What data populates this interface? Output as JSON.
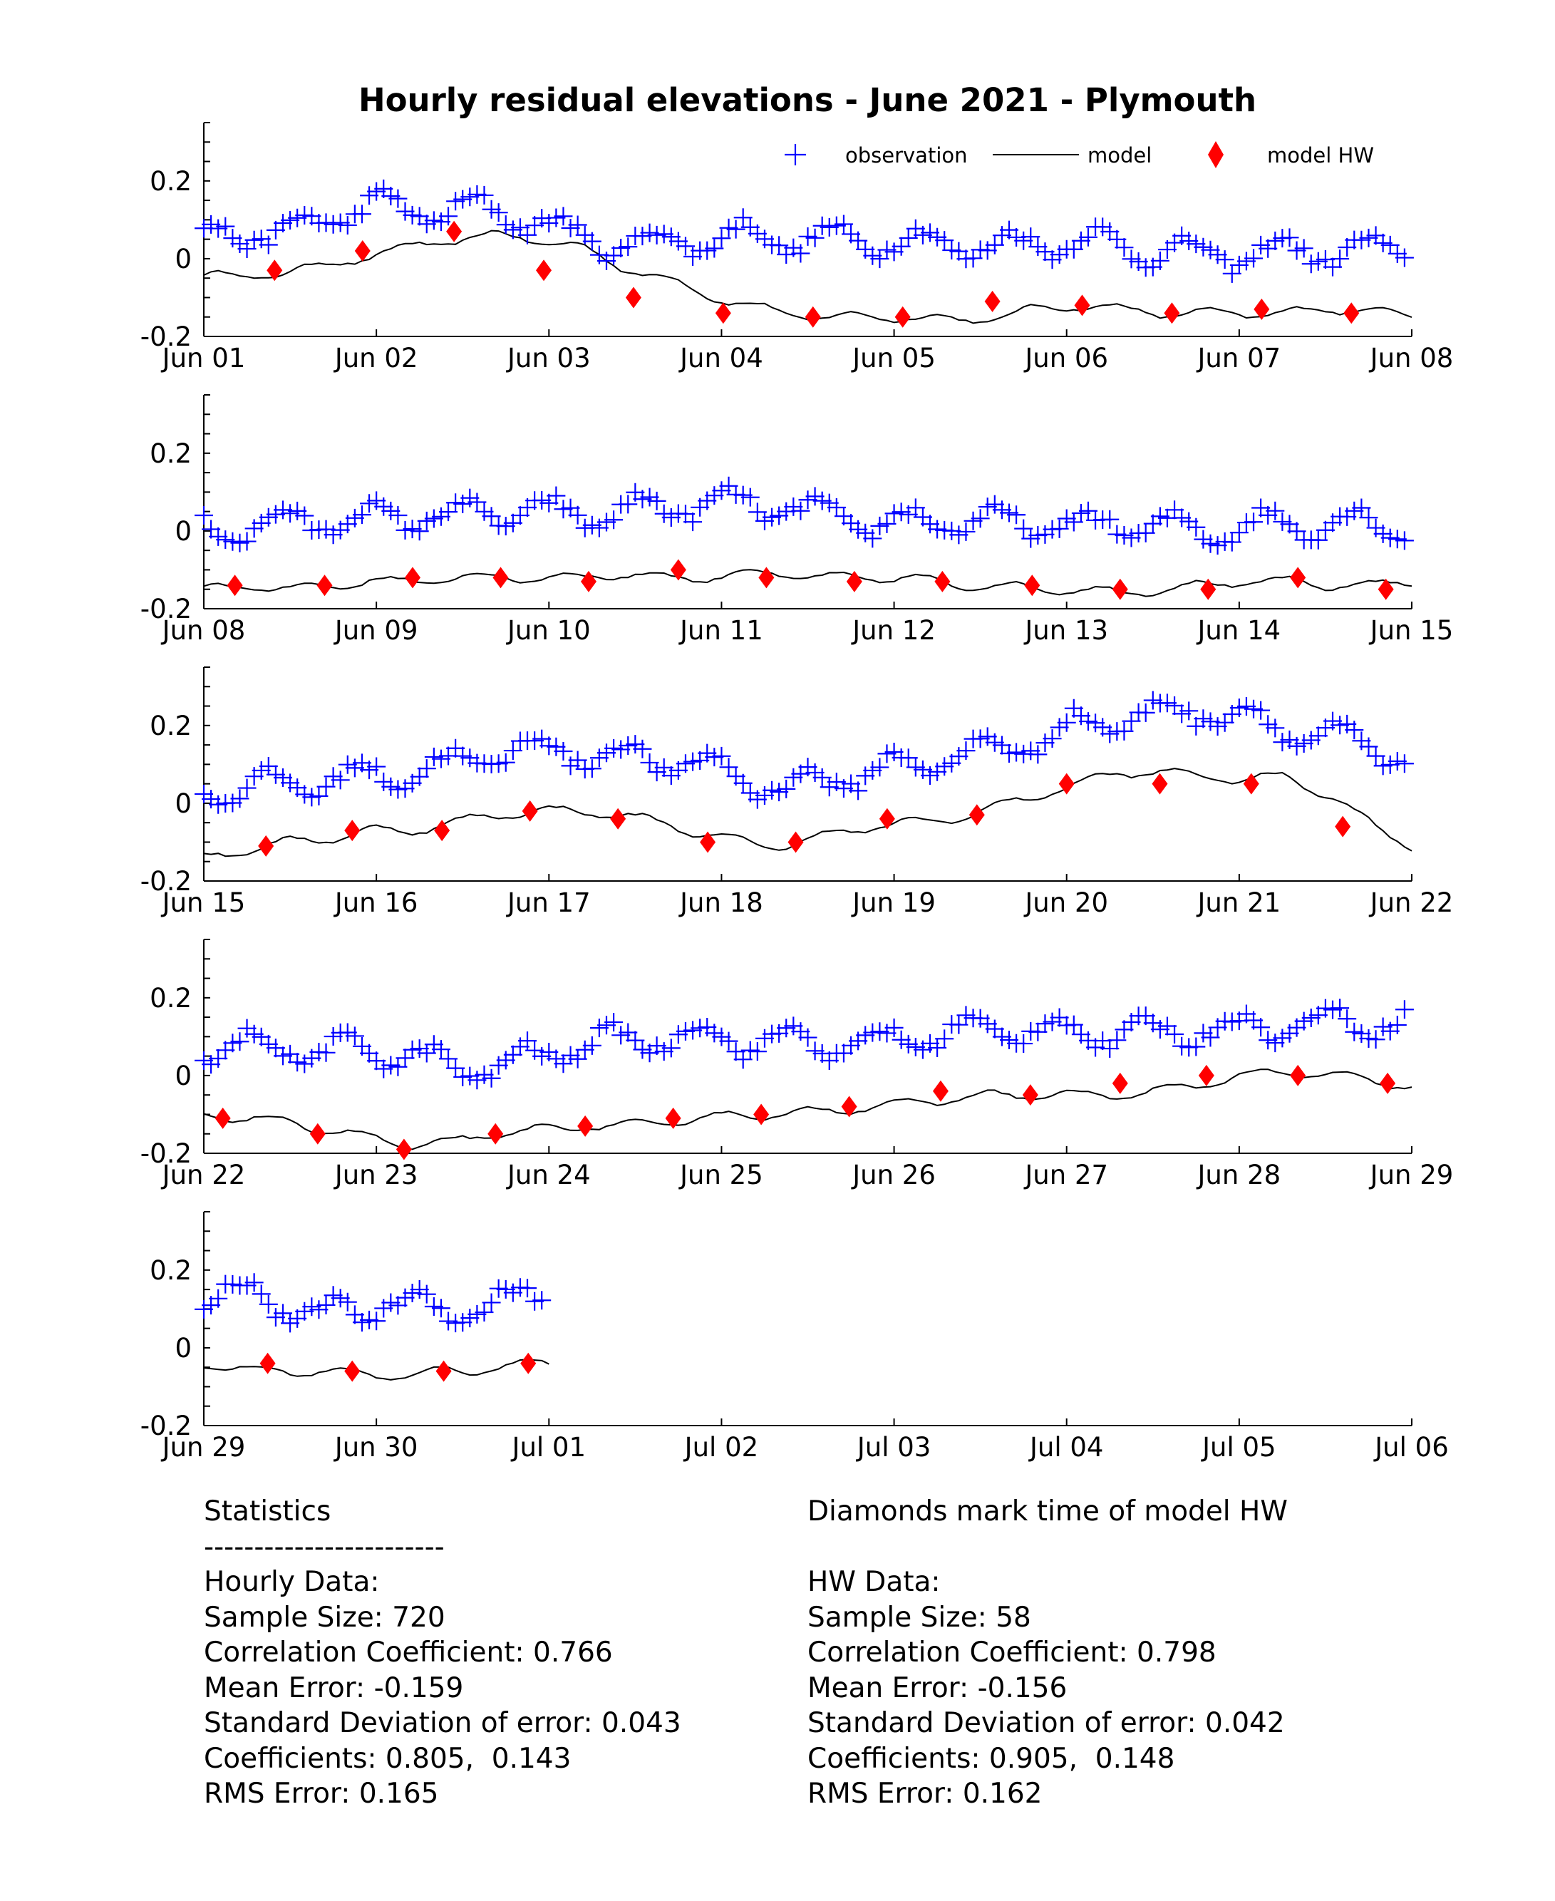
{
  "chart_data": {
    "type": "line",
    "title": "Hourly residual elevations - June  2021 - Plymouth",
    "ylabel": "",
    "xlabel": "",
    "ylim": [
      -0.2,
      0.35
    ],
    "yticks": [
      "0.2",
      "0",
      "-0.2"
    ],
    "grid": false,
    "legend_position": "top-right",
    "legend": [
      {
        "label": "observation",
        "marker": "plus",
        "color": "#0000ff"
      },
      {
        "label": "model",
        "marker": "line",
        "color": "#000000"
      },
      {
        "label": "model HW",
        "marker": "diamond",
        "color": "#ff0000"
      }
    ],
    "panels": [
      {
        "x_ticks": [
          "Jun 01",
          "Jun 02",
          "Jun 03",
          "Jun 04",
          "Jun 05",
          "Jun 06",
          "Jun 07",
          "Jun 08"
        ],
        "observation_base": [
          0.05,
          0.07,
          0.06,
          0.11,
          0.14,
          0.12,
          0.13,
          0.12,
          0.1,
          0.05,
          0.04,
          0.04,
          0.05,
          0.06,
          0.05,
          0.05,
          0.05,
          0.04,
          0.04,
          0.03,
          0.04,
          0.05,
          0.03,
          0.02,
          0.01,
          0.01,
          0.02,
          0.02,
          0.02,
          0.02
        ],
        "model_base": [
          -0.04,
          -0.05,
          -0.03,
          -0.02,
          0.01,
          0.03,
          0.05,
          0.06,
          0.05,
          0.03,
          -0.02,
          -0.05,
          -0.09,
          -0.12,
          -0.14,
          -0.15,
          -0.15,
          -0.15,
          -0.16,
          -0.15,
          -0.13,
          -0.12,
          -0.13,
          -0.14,
          -0.14,
          -0.14,
          -0.14,
          -0.13,
          -0.13,
          -0.15
        ],
        "hw": [
          [
            0.41,
            -0.03
          ],
          [
            0.92,
            0.02
          ],
          [
            1.45,
            0.07
          ],
          [
            1.97,
            -0.03
          ],
          [
            2.49,
            -0.1
          ],
          [
            3.01,
            -0.14
          ],
          [
            3.53,
            -0.15
          ],
          [
            4.05,
            -0.15
          ],
          [
            4.57,
            -0.11
          ],
          [
            5.09,
            -0.12
          ],
          [
            5.61,
            -0.14
          ],
          [
            6.13,
            -0.13
          ],
          [
            6.65,
            -0.14
          ]
        ]
      },
      {
        "x_ticks": [
          "Jun 08",
          "Jun 09",
          "Jun 10",
          "Jun 11",
          "Jun 12",
          "Jun 13",
          "Jun 14",
          "Jun 15"
        ],
        "observation_base": [
          0.0,
          0.01,
          0.02,
          0.03,
          0.03,
          0.04,
          0.04,
          0.05,
          0.05,
          0.04,
          0.05,
          0.06,
          0.07,
          0.07,
          0.06,
          0.04,
          0.02,
          0.02,
          0.03,
          0.02,
          0.02,
          0.01,
          0.02,
          0.01,
          0.0,
          0.01,
          0.02,
          0.02,
          0.02,
          0.01
        ],
        "model_base": [
          -0.15,
          -0.14,
          -0.15,
          -0.14,
          -0.13,
          -0.13,
          -0.12,
          -0.12,
          -0.12,
          -0.12,
          -0.11,
          -0.12,
          -0.12,
          -0.11,
          -0.11,
          -0.12,
          -0.12,
          -0.12,
          -0.14,
          -0.14,
          -0.15,
          -0.15,
          -0.16,
          -0.15,
          -0.14,
          -0.13,
          -0.13,
          -0.14,
          -0.14,
          -0.13
        ],
        "hw": [
          [
            0.18,
            -0.14
          ],
          [
            0.7,
            -0.14
          ],
          [
            1.21,
            -0.12
          ],
          [
            1.72,
            -0.12
          ],
          [
            2.23,
            -0.13
          ],
          [
            2.75,
            -0.1
          ],
          [
            3.26,
            -0.12
          ],
          [
            3.77,
            -0.13
          ],
          [
            4.28,
            -0.13
          ],
          [
            4.8,
            -0.14
          ],
          [
            5.31,
            -0.15
          ],
          [
            5.82,
            -0.15
          ],
          [
            6.34,
            -0.12
          ],
          [
            6.85,
            -0.15
          ]
        ]
      },
      {
        "x_ticks": [
          "Jun 15",
          "Jun 16",
          "Jun 17",
          "Jun 18",
          "Jun 19",
          "Jun 20",
          "Jun 21",
          "Jun 22"
        ],
        "observation_base": [
          0.03,
          0.04,
          0.05,
          0.06,
          0.07,
          0.08,
          0.1,
          0.13,
          0.14,
          0.13,
          0.12,
          0.11,
          0.1,
          0.06,
          0.04,
          0.06,
          0.08,
          0.1,
          0.12,
          0.14,
          0.16,
          0.2,
          0.22,
          0.23,
          0.24,
          0.22,
          0.19,
          0.17,
          0.15,
          0.1
        ],
        "model_base": [
          -0.14,
          -0.12,
          -0.1,
          -0.09,
          -0.07,
          -0.07,
          -0.05,
          -0.03,
          -0.02,
          -0.02,
          -0.03,
          -0.05,
          -0.08,
          -0.1,
          -0.11,
          -0.08,
          -0.06,
          -0.05,
          -0.04,
          -0.01,
          0.02,
          0.05,
          0.08,
          0.08,
          0.07,
          0.06,
          0.07,
          0.02,
          -0.05,
          -0.11
        ],
        "hw": [
          [
            0.36,
            -0.11
          ],
          [
            0.86,
            -0.07
          ],
          [
            1.38,
            -0.07
          ],
          [
            1.89,
            -0.02
          ],
          [
            2.4,
            -0.04
          ],
          [
            2.92,
            -0.1
          ],
          [
            3.43,
            -0.1
          ],
          [
            3.96,
            -0.04
          ],
          [
            4.48,
            -0.03
          ],
          [
            5.0,
            0.05
          ],
          [
            5.54,
            0.05
          ],
          [
            6.07,
            0.05
          ],
          [
            6.6,
            -0.06
          ]
        ]
      },
      {
        "x_ticks": [
          "Jun 22",
          "Jun 23",
          "Jun 24",
          "Jun 25",
          "Jun 26",
          "Jun 27",
          "Jun 28",
          "Jun 29"
        ],
        "observation_base": [
          0.06,
          0.08,
          0.07,
          0.06,
          0.07,
          0.05,
          0.02,
          0.02,
          0.05,
          0.08,
          0.09,
          0.1,
          0.1,
          0.09,
          0.09,
          0.08,
          0.08,
          0.1,
          0.11,
          0.12,
          0.12,
          0.11,
          0.11,
          0.11,
          0.12,
          0.12,
          0.13,
          0.14,
          0.14,
          0.13
        ],
        "model_base": [
          -0.1,
          -0.11,
          -0.12,
          -0.14,
          -0.16,
          -0.18,
          -0.17,
          -0.15,
          -0.14,
          -0.13,
          -0.13,
          -0.12,
          -0.11,
          -0.1,
          -0.1,
          -0.09,
          -0.08,
          -0.07,
          -0.06,
          -0.05,
          -0.05,
          -0.05,
          -0.05,
          -0.04,
          -0.02,
          0.0,
          0.01,
          0.0,
          -0.01,
          -0.03
        ],
        "hw": [
          [
            0.11,
            -0.11
          ],
          [
            0.66,
            -0.15
          ],
          [
            1.16,
            -0.19
          ],
          [
            1.69,
            -0.15
          ],
          [
            2.21,
            -0.13
          ],
          [
            2.72,
            -0.11
          ],
          [
            3.23,
            -0.1
          ],
          [
            3.74,
            -0.08
          ],
          [
            4.27,
            -0.04
          ],
          [
            4.79,
            -0.05
          ],
          [
            5.31,
            -0.02
          ],
          [
            5.81,
            0.0
          ],
          [
            6.34,
            0.0
          ],
          [
            6.86,
            -0.02
          ]
        ]
      },
      {
        "x_ticks": [
          "Jun 29",
          "Jun 30",
          "Jul 01",
          "Jul 02",
          "Jul 03",
          "Jul 04",
          "Jul 05",
          "Jul 06"
        ],
        "obs_days": 2.0,
        "observation_base": [
          0.12,
          0.14,
          0.14,
          0.11,
          0.08,
          0.09,
          0.1,
          0.12,
          0.11,
          0.1,
          0.1,
          0.11,
          0.13,
          0.15
        ],
        "model_base": [
          -0.04,
          -0.05,
          -0.06,
          -0.06,
          -0.06,
          -0.06,
          -0.07,
          -0.07,
          -0.07,
          -0.06,
          -0.06,
          -0.05,
          -0.04,
          -0.04
        ],
        "hw": [
          [
            0.37,
            -0.04
          ],
          [
            0.86,
            -0.06
          ],
          [
            1.39,
            -0.06
          ],
          [
            1.88,
            -0.04
          ]
        ]
      }
    ]
  },
  "stats": {
    "left": {
      "heading": "Statistics",
      "rule": "------------------------",
      "group": "Hourly Data:",
      "sample_size": "Sample Size: 720",
      "correlation": "Correlation Coefficient: 0.766",
      "mean_error": "Mean Error: -0.159",
      "std_error": "Standard Deviation of error: 0.043",
      "coefficients": "Coefficients: 0.805,  0.143",
      "rms_error": "RMS Error: 0.165"
    },
    "right": {
      "heading": "Diamonds mark time of model HW",
      "group": "HW Data:",
      "sample_size": "Sample Size: 58",
      "correlation": "Correlation Coefficient: 0.798",
      "mean_error": "Mean Error: -0.156",
      "std_error": "Standard Deviation of error: 0.042",
      "coefficients": "Coefficients: 0.905,  0.148",
      "rms_error": "RMS Error: 0.162"
    }
  }
}
